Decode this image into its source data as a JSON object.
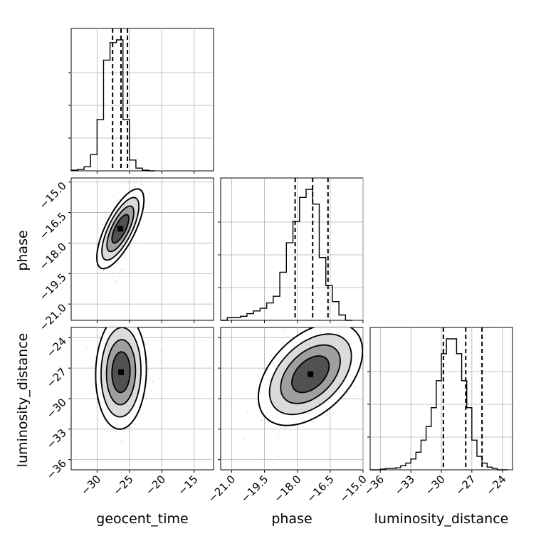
{
  "chart_data": {
    "type": "corner",
    "parameters": [
      "geocent_time",
      "phase",
      "luminosity_distance"
    ],
    "quantile_lines": {
      "geocent_time": [
        -27.6,
        -26.3,
        -25.3
      ],
      "phase": [
        -18.1,
        -17.3,
        -16.6
      ],
      "luminosity_distance": [
        -29.8,
        -27.6,
        -26.0
      ]
    },
    "histograms": [
      {
        "parameter": "geocent_time",
        "xlim": [
          -34,
          -12
        ],
        "bin_edges": [
          -34,
          -33,
          -32,
          -31,
          -30,
          -29,
          -28,
          -27,
          -26,
          -25,
          -24,
          -23,
          -22,
          -21
        ],
        "counts": [
          0.005,
          0.01,
          0.03,
          0.12,
          0.38,
          0.82,
          0.95,
          0.97,
          0.38,
          0.08,
          0.02,
          0.005,
          0.0
        ]
      },
      {
        "parameter": "phase",
        "xlim": [
          -21.5,
          -15.0
        ],
        "bin_edges": [
          -21.5,
          -21.2,
          -20.9,
          -20.6,
          -20.3,
          -20.0,
          -19.7,
          -19.4,
          -19.1,
          -18.8,
          -18.5,
          -18.2,
          -17.9,
          -17.6,
          -17.3,
          -17.0,
          -16.7,
          -16.4,
          -16.1,
          -15.8,
          -15.5
        ],
        "counts": [
          0.0,
          0.02,
          0.02,
          0.03,
          0.05,
          0.07,
          0.09,
          0.13,
          0.18,
          0.36,
          0.58,
          0.74,
          0.92,
          0.98,
          0.87,
          0.47,
          0.26,
          0.14,
          0.04,
          0.0
        ]
      },
      {
        "parameter": "luminosity_distance",
        "xlim": [
          -37,
          -23
        ],
        "bin_edges": [
          -37,
          -36.5,
          -36,
          -35.5,
          -35,
          -34.5,
          -34,
          -33.5,
          -33,
          -32.5,
          -32,
          -31.5,
          -31,
          -30.5,
          -30,
          -29.5,
          -29,
          -28.5,
          -28,
          -27.5,
          -27,
          -26.5,
          -26,
          -25.5,
          -25,
          -24.5,
          -24,
          -23.5
        ],
        "counts": [
          0.0,
          0.0,
          0.005,
          0.01,
          0.01,
          0.015,
          0.03,
          0.05,
          0.08,
          0.13,
          0.22,
          0.32,
          0.46,
          0.66,
          0.86,
          0.97,
          0.97,
          0.86,
          0.66,
          0.46,
          0.22,
          0.1,
          0.05,
          0.02,
          0.01,
          0.0,
          0.0
        ]
      }
    ],
    "density_panels": [
      {
        "x": "geocent_time",
        "y": "phase",
        "xlim": [
          -34,
          -12
        ],
        "ylim": [
          -21.8,
          -14.8
        ],
        "mean": [
          -26.4,
          -17.3
        ],
        "sd": [
          1.3,
          0.7
        ],
        "rho": 0.72,
        "contour_levels": [
          1.0,
          1.6,
          2.2,
          2.8
        ]
      },
      {
        "x": "geocent_time",
        "y": "luminosity_distance",
        "xlim": [
          -34,
          -12
        ],
        "ylim": [
          -37,
          -23
        ],
        "mean": [
          -26.3,
          -27.4
        ],
        "sd": [
          1.4,
          2.0
        ],
        "rho": 0.05,
        "contour_levels": [
          1.0,
          1.6,
          2.2,
          2.8
        ]
      },
      {
        "x": "phase",
        "y": "luminosity_distance",
        "xlim": [
          -21.5,
          -15.0
        ],
        "ylim": [
          -37,
          -23
        ],
        "mean": [
          -17.4,
          -27.6
        ],
        "sd": [
          0.85,
          1.8
        ],
        "rho": 0.45,
        "contour_levels": [
          1.0,
          1.6,
          2.2,
          2.8
        ]
      }
    ],
    "ticks": {
      "geocent_time": [
        "−30",
        "−25",
        "−20",
        "−15"
      ],
      "geocent_time_values": [
        -30,
        -25,
        -20,
        -15
      ],
      "phase": [
        "−21.0",
        "−19.5",
        "−18.0",
        "−16.5",
        "−15.0"
      ],
      "phase_values": [
        -21.0,
        -19.5,
        -18.0,
        -16.5,
        -15.0
      ],
      "luminosity_distance": [
        "−36",
        "−33",
        "−30",
        "−27",
        "−24"
      ],
      "luminosity_distance_values": [
        -36,
        -33,
        -30,
        -27,
        -24
      ]
    },
    "grid": true,
    "xlabels": [
      "geocent_time",
      "phase",
      "luminosity_distance"
    ],
    "ylabels": [
      "phase",
      "luminosity_distance"
    ]
  }
}
